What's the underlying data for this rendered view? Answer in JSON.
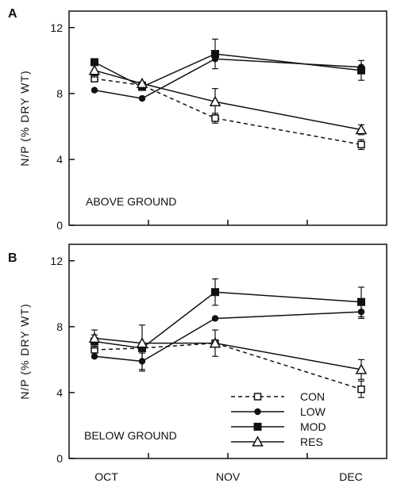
{
  "colors": {
    "ink": "#111111",
    "background": "#ffffff"
  },
  "chart_data": [
    {
      "type": "line",
      "panel": "A",
      "annotation": "ABOVE GROUND",
      "ylabel": "N/P   (%  DRY  WT)",
      "ylim": [
        0,
        13
      ],
      "yticks": [
        0,
        4,
        8,
        12
      ],
      "categories": [
        "OCT",
        "NOV",
        "DEC"
      ],
      "x_range": [
        0,
        100
      ],
      "x_ticks": [
        25,
        50,
        75
      ],
      "series": [
        {
          "name": "CON",
          "marker": "open-square",
          "dash": true,
          "x": [
            8,
            23,
            46,
            92
          ],
          "y": [
            8.9,
            8.5,
            6.5,
            4.9
          ],
          "err": [
            0,
            0,
            0.3,
            0.3
          ]
        },
        {
          "name": "LOW",
          "marker": "filled-circle",
          "dash": false,
          "x": [
            8,
            23,
            46,
            92
          ],
          "y": [
            8.2,
            7.7,
            10.1,
            9.6
          ],
          "err": [
            0,
            0,
            0,
            0
          ]
        },
        {
          "name": "MOD",
          "marker": "filled-square",
          "dash": false,
          "x": [
            8,
            23,
            46,
            92
          ],
          "y": [
            9.9,
            8.4,
            10.4,
            9.4
          ],
          "err": [
            0,
            0,
            0.9,
            0.6
          ]
        },
        {
          "name": "RES",
          "marker": "open-triangle",
          "dash": false,
          "x": [
            8,
            23,
            46,
            92
          ],
          "y": [
            9.4,
            8.6,
            7.5,
            5.8
          ],
          "err": [
            0.4,
            0,
            0.8,
            0.3
          ]
        }
      ]
    },
    {
      "type": "line",
      "panel": "B",
      "annotation": "BELOW GROUND",
      "ylabel": "N/P   (%  DRY  WT)",
      "ylim": [
        0,
        13
      ],
      "yticks": [
        0,
        4,
        8,
        12
      ],
      "categories": [
        "OCT",
        "NOV",
        "DEC"
      ],
      "x_range": [
        0,
        100
      ],
      "x_ticks": [
        25,
        50,
        75
      ],
      "legend": {
        "placement": "bottom-right",
        "entries": [
          "CON",
          "LOW",
          "MOD",
          "RES"
        ]
      },
      "series": [
        {
          "name": "CON",
          "marker": "open-square",
          "dash": true,
          "x": [
            8,
            23,
            46,
            92
          ],
          "y": [
            6.6,
            6.7,
            7.0,
            4.2
          ],
          "err": [
            0,
            0,
            0,
            0.5
          ]
        },
        {
          "name": "LOW",
          "marker": "filled-circle",
          "dash": false,
          "x": [
            8,
            23,
            46,
            92
          ],
          "y": [
            6.2,
            5.9,
            8.5,
            8.9
          ],
          "err": [
            0,
            0.5,
            0,
            0.4
          ]
        },
        {
          "name": "MOD",
          "marker": "filled-square",
          "dash": false,
          "x": [
            8,
            23,
            46,
            92
          ],
          "y": [
            7.1,
            6.7,
            10.1,
            9.5
          ],
          "err": [
            0.4,
            1.4,
            0.8,
            0.9
          ]
        },
        {
          "name": "RES",
          "marker": "open-triangle",
          "dash": false,
          "x": [
            8,
            23,
            46,
            92
          ],
          "y": [
            7.3,
            7.0,
            7.0,
            5.4
          ],
          "err": [
            0.5,
            0,
            0.8,
            0.6
          ]
        }
      ]
    }
  ]
}
